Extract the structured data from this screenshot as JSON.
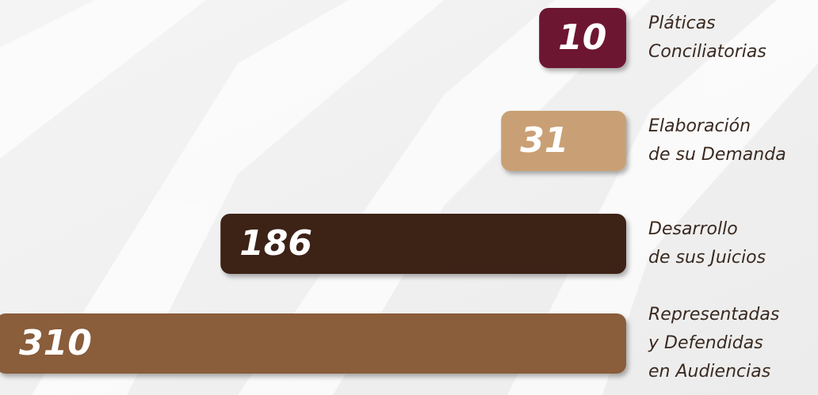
{
  "chart_data": {
    "type": "bar",
    "orientation": "horizontal",
    "categories": [
      [
        "Pláticas",
        "Conciliatorias"
      ],
      [
        "Elaboración",
        "de su Demanda"
      ],
      [
        "Desarrollo",
        "de sus Juicios"
      ],
      [
        "Representadas",
        "y Defendidas",
        "en Audiencias"
      ]
    ],
    "values": [
      10,
      31,
      186,
      310
    ],
    "colors": [
      "#6d1533",
      "#c9a074",
      "#3d2212",
      "#8a5d3b"
    ]
  }
}
